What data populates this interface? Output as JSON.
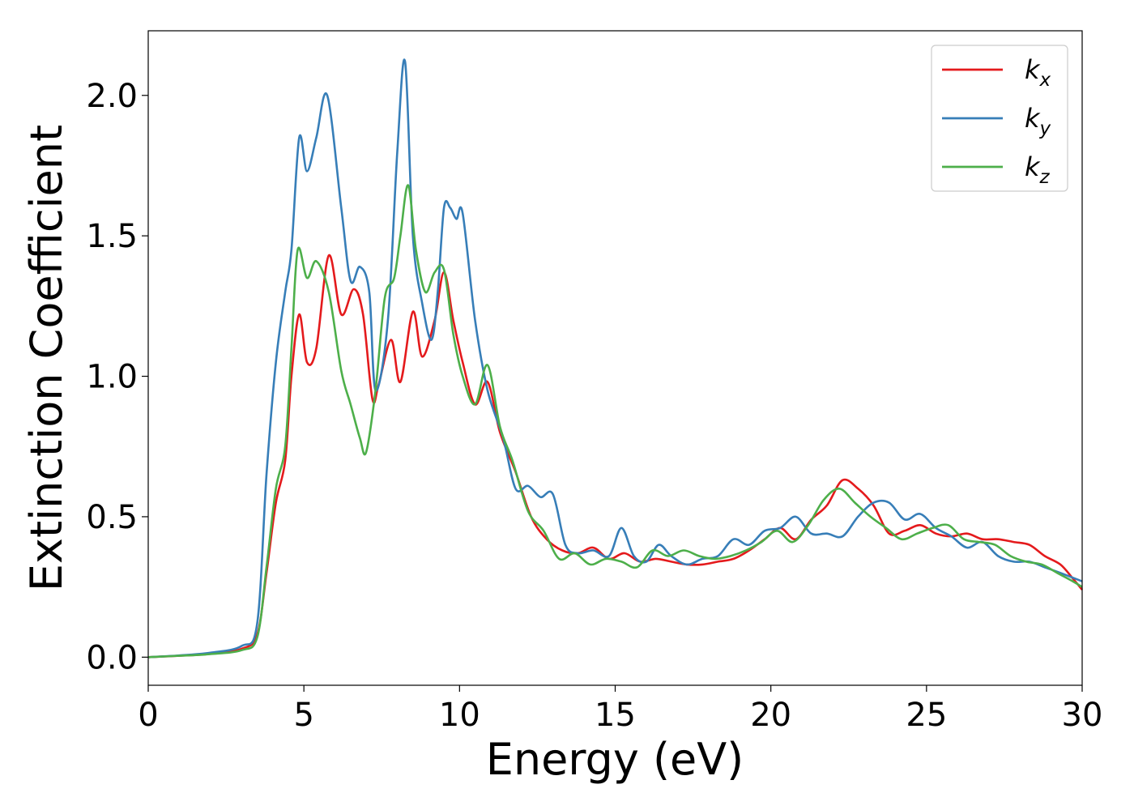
{
  "chart_data": {
    "type": "line",
    "xlabel": "Energy (eV)",
    "ylabel": "Extinction Coefficient",
    "xlim": [
      0,
      30
    ],
    "ylim": [
      -0.1,
      2.23
    ],
    "xticks": [
      0,
      5,
      10,
      15,
      20,
      25,
      30
    ],
    "xtick_labels": [
      "0",
      "5",
      "10",
      "15",
      "20",
      "25",
      "30"
    ],
    "yticks": [
      0.0,
      0.5,
      1.0,
      1.5,
      2.0
    ],
    "ytick_labels": [
      "0.0",
      "0.5",
      "1.0",
      "1.5",
      "2.0"
    ],
    "grid": false,
    "legend_position": "top-right",
    "series": [
      {
        "name": "kx",
        "label_base": "k",
        "label_sub": "x",
        "color": "#e41a1c",
        "x": [
          0,
          1,
          2,
          3,
          3.5,
          3.8,
          4.1,
          4.4,
          4.6,
          4.85,
          5.1,
          5.4,
          5.8,
          6.2,
          6.6,
          6.9,
          7.2,
          7.4,
          7.8,
          8.1,
          8.5,
          8.8,
          9.2,
          9.5,
          9.8,
          10.1,
          10.5,
          10.9,
          11.3,
          11.8,
          12.3,
          12.8,
          13.3,
          13.8,
          14.3,
          14.8,
          15.3,
          15.8,
          16.3,
          16.8,
          17.3,
          17.8,
          18.3,
          18.8,
          19.3,
          19.8,
          20.3,
          20.8,
          21.3,
          21.8,
          22.3,
          22.8,
          23.3,
          23.8,
          24.3,
          24.8,
          25.3,
          25.8,
          26.3,
          26.8,
          27.3,
          27.8,
          28.3,
          28.8,
          29.3,
          29.7,
          30
        ],
        "y": [
          0.0,
          0.005,
          0.012,
          0.03,
          0.08,
          0.3,
          0.55,
          0.7,
          1.0,
          1.22,
          1.05,
          1.1,
          1.43,
          1.22,
          1.31,
          1.22,
          0.92,
          0.97,
          1.13,
          0.98,
          1.23,
          1.07,
          1.2,
          1.37,
          1.2,
          1.05,
          0.9,
          0.98,
          0.8,
          0.66,
          0.5,
          0.42,
          0.38,
          0.37,
          0.39,
          0.35,
          0.37,
          0.34,
          0.35,
          0.34,
          0.33,
          0.33,
          0.34,
          0.35,
          0.38,
          0.42,
          0.46,
          0.42,
          0.49,
          0.54,
          0.63,
          0.6,
          0.54,
          0.44,
          0.45,
          0.47,
          0.44,
          0.43,
          0.44,
          0.42,
          0.42,
          0.41,
          0.4,
          0.36,
          0.33,
          0.28,
          0.24
        ]
      },
      {
        "name": "ky",
        "label_base": "k",
        "label_sub": "y",
        "color": "#377eb8",
        "x": [
          0,
          1,
          2,
          3,
          3.5,
          3.8,
          4.1,
          4.4,
          4.6,
          4.85,
          5.1,
          5.4,
          5.75,
          6.2,
          6.5,
          6.8,
          7.1,
          7.3,
          7.7,
          8.0,
          8.25,
          8.5,
          8.8,
          9.1,
          9.3,
          9.5,
          9.7,
          9.9,
          10.1,
          10.5,
          10.9,
          11.4,
          11.8,
          12.2,
          12.6,
          13.0,
          13.4,
          13.8,
          14.3,
          14.8,
          15.2,
          15.6,
          16.0,
          16.4,
          16.8,
          17.3,
          17.8,
          18.3,
          18.8,
          19.3,
          19.8,
          20.3,
          20.8,
          21.3,
          21.8,
          22.3,
          22.8,
          23.3,
          23.8,
          24.3,
          24.8,
          25.3,
          25.8,
          26.3,
          26.8,
          27.3,
          27.8,
          28.3,
          28.8,
          29.3,
          30
        ],
        "y": [
          0.0,
          0.006,
          0.016,
          0.04,
          0.12,
          0.65,
          1.05,
          1.3,
          1.45,
          1.85,
          1.73,
          1.85,
          2.0,
          1.6,
          1.34,
          1.39,
          1.3,
          0.95,
          1.2,
          1.8,
          2.12,
          1.5,
          1.26,
          1.13,
          1.3,
          1.6,
          1.6,
          1.56,
          1.58,
          1.2,
          0.95,
          0.78,
          0.6,
          0.61,
          0.57,
          0.58,
          0.4,
          0.37,
          0.38,
          0.36,
          0.46,
          0.36,
          0.34,
          0.4,
          0.36,
          0.33,
          0.35,
          0.36,
          0.42,
          0.4,
          0.45,
          0.46,
          0.5,
          0.44,
          0.44,
          0.43,
          0.5,
          0.55,
          0.55,
          0.49,
          0.51,
          0.46,
          0.43,
          0.39,
          0.41,
          0.36,
          0.34,
          0.34,
          0.32,
          0.3,
          0.27
        ]
      },
      {
        "name": "kz",
        "label_base": "k",
        "label_sub": "z",
        "color": "#4daf4a",
        "x": [
          0,
          1,
          2,
          3,
          3.5,
          3.8,
          4.1,
          4.4,
          4.6,
          4.8,
          5.1,
          5.4,
          5.8,
          6.2,
          6.5,
          6.8,
          7.0,
          7.3,
          7.6,
          7.9,
          8.1,
          8.35,
          8.6,
          8.9,
          9.2,
          9.5,
          9.8,
          10.1,
          10.5,
          10.9,
          11.3,
          11.7,
          12.2,
          12.7,
          13.2,
          13.7,
          14.2,
          14.7,
          15.2,
          15.7,
          16.2,
          16.7,
          17.2,
          17.7,
          18.2,
          18.7,
          19.2,
          19.7,
          20.2,
          20.7,
          21.2,
          21.7,
          22.2,
          22.7,
          23.2,
          23.7,
          24.2,
          24.7,
          25.2,
          25.7,
          26.2,
          26.7,
          27.2,
          27.7,
          28.2,
          28.7,
          29.2,
          29.7,
          30
        ],
        "y": [
          0.0,
          0.005,
          0.011,
          0.025,
          0.07,
          0.32,
          0.6,
          0.75,
          1.1,
          1.45,
          1.35,
          1.41,
          1.3,
          1.02,
          0.9,
          0.78,
          0.73,
          0.95,
          1.28,
          1.35,
          1.5,
          1.68,
          1.45,
          1.3,
          1.37,
          1.38,
          1.15,
          1.0,
          0.9,
          1.04,
          0.82,
          0.7,
          0.52,
          0.45,
          0.35,
          0.37,
          0.33,
          0.35,
          0.34,
          0.32,
          0.38,
          0.36,
          0.38,
          0.36,
          0.35,
          0.36,
          0.38,
          0.41,
          0.45,
          0.41,
          0.47,
          0.56,
          0.6,
          0.55,
          0.5,
          0.46,
          0.42,
          0.44,
          0.46,
          0.47,
          0.42,
          0.41,
          0.4,
          0.36,
          0.34,
          0.33,
          0.3,
          0.27,
          0.25
        ]
      }
    ]
  }
}
